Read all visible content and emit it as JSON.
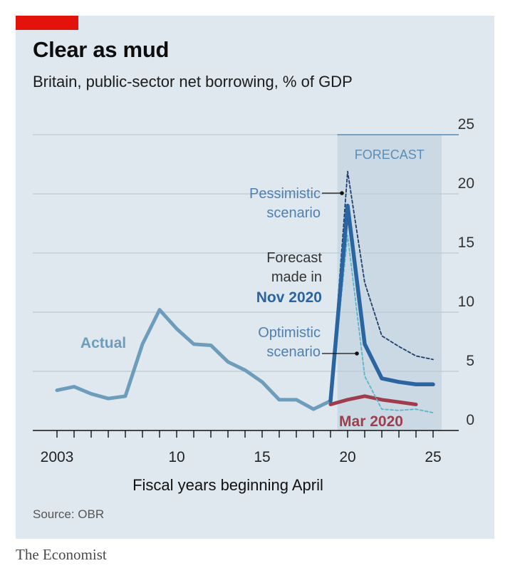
{
  "header": {
    "title": "Clear as mud",
    "subtitle": "Britain, public-sector net borrowing, % of GDP"
  },
  "footer": {
    "source": "Source: OBR",
    "brand": "The Economist"
  },
  "colors": {
    "accent_red": "#e3120b",
    "panel": "#dfe8ef",
    "forecast_band": "#cbd9e5",
    "actual": "#6d9dba",
    "nov_forecast": "#2a64a1",
    "mar_forecast": "#9e3e4d",
    "optimistic": "#5db4c9",
    "pessimistic": "#1e3f6e"
  },
  "chart_data": {
    "type": "line",
    "xlabel": "Fiscal years beginning April",
    "ylabel": "",
    "xlim": [
      2002,
      2027
    ],
    "ylim": [
      0,
      25
    ],
    "x_ticks": [
      2003,
      2004,
      2005,
      2006,
      2007,
      2008,
      2009,
      2010,
      2011,
      2012,
      2013,
      2014,
      2015,
      2016,
      2017,
      2018,
      2019,
      2020,
      2021,
      2022,
      2023,
      2024,
      2025
    ],
    "x_tick_labels": [
      {
        "x": 2003,
        "label": "2003"
      },
      {
        "x": 2010,
        "label": "10"
      },
      {
        "x": 2015,
        "label": "15"
      },
      {
        "x": 2020,
        "label": "20"
      },
      {
        "x": 2025,
        "label": "25"
      }
    ],
    "y_ticks": [
      0,
      5,
      10,
      15,
      20,
      25
    ],
    "y_tick_labels": [
      "0",
      "5",
      "10",
      "15",
      "20",
      "25"
    ],
    "y_axis_position": "right",
    "grid": true,
    "forecast_region": {
      "x_start": 2019.4,
      "x_end": 2025.5,
      "label": "FORECAST"
    },
    "series": [
      {
        "key": "actual",
        "name": "Actual",
        "x": [
          2003,
          2004,
          2005,
          2006,
          2007,
          2008,
          2009,
          2010,
          2011,
          2012,
          2013,
          2014,
          2015,
          2016,
          2017,
          2018,
          2019
        ],
        "values": [
          3.4,
          3.7,
          3.1,
          2.7,
          2.9,
          7.3,
          10.2,
          8.6,
          7.3,
          7.2,
          5.8,
          5.1,
          4.1,
          2.6,
          2.6,
          1.8,
          2.5
        ]
      },
      {
        "key": "nov_2020",
        "name": "Nov 2020",
        "x": [
          2019,
          2020,
          2021,
          2022,
          2023,
          2024,
          2025
        ],
        "values": [
          2.5,
          19.0,
          7.3,
          4.4,
          4.1,
          3.9,
          3.9
        ]
      },
      {
        "key": "mar_2020",
        "name": "Mar 2020",
        "x": [
          2019,
          2020,
          2021,
          2022,
          2023,
          2024
        ],
        "values": [
          2.2,
          2.6,
          2.9,
          2.6,
          2.4,
          2.2
        ]
      },
      {
        "key": "pessimistic",
        "name": "Pessimistic scenario",
        "x": [
          2019,
          2020,
          2021,
          2022,
          2023,
          2024,
          2025
        ],
        "values": [
          2.5,
          21.9,
          12.5,
          8.0,
          7.1,
          6.3,
          6.0
        ]
      },
      {
        "key": "optimistic",
        "name": "Optimistic scenario",
        "x": [
          2019,
          2020,
          2021,
          2022,
          2023,
          2024,
          2025
        ],
        "values": [
          2.5,
          16.5,
          4.6,
          1.8,
          1.7,
          1.8,
          1.5
        ]
      }
    ],
    "annotations": [
      {
        "key": "pessimistic",
        "lines": [
          "Pessimistic",
          "scenario"
        ]
      },
      {
        "key": "forecast",
        "lines": [
          "Forecast",
          "made in"
        ],
        "bold_line": "Nov 2020"
      },
      {
        "key": "optimistic",
        "lines": [
          "Optimistic",
          "scenario"
        ]
      }
    ],
    "labels": {
      "actual": "Actual",
      "mar_2020": "Mar 2020"
    }
  }
}
